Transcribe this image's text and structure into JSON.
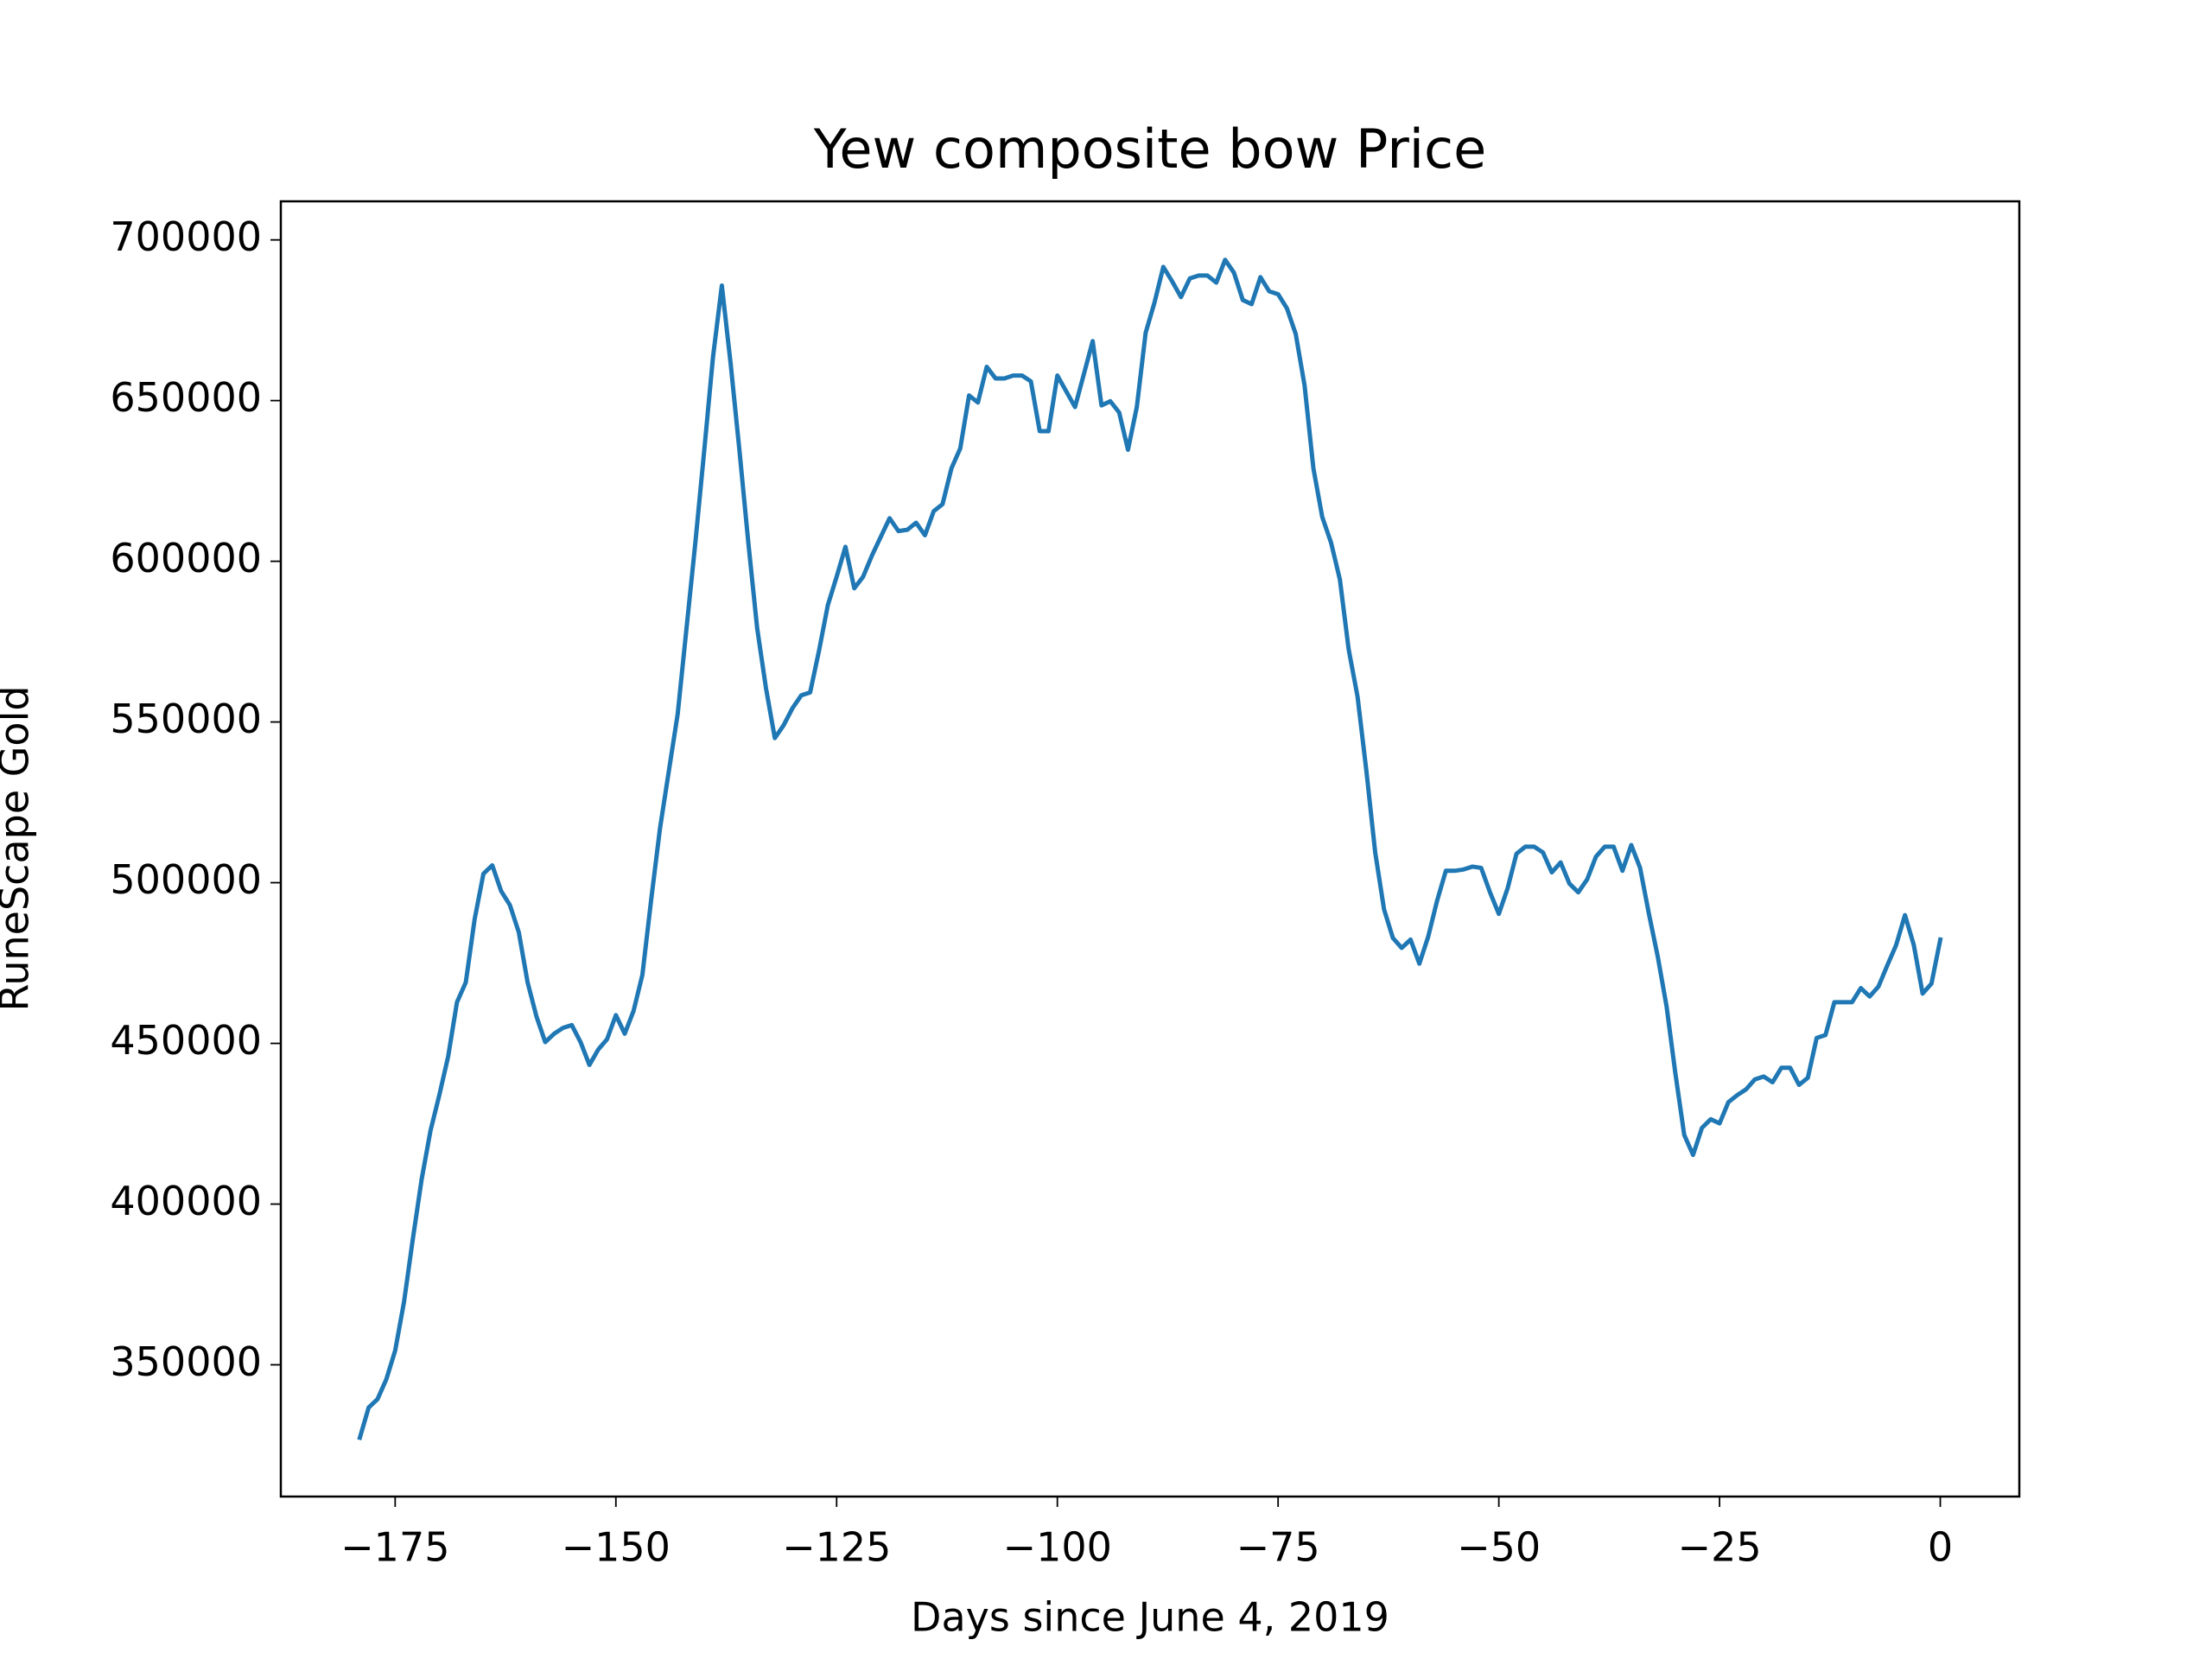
{
  "chart_data": {
    "type": "line",
    "title": "Yew composite bow Price",
    "xlabel": "Days since June 4, 2019",
    "ylabel": "RuneScape Gold",
    "x": [
      -179,
      -178,
      -177,
      -176,
      -175,
      -174,
      -173,
      -172,
      -171,
      -170,
      -169,
      -168,
      -167,
      -166,
      -165,
      -164,
      -163,
      -162,
      -161,
      -160,
      -159,
      -158,
      -157,
      -156,
      -155,
      -154,
      -153,
      -152,
      -151,
      -150,
      -149,
      -148,
      -147,
      -146,
      -145,
      -144,
      -143,
      -142,
      -141,
      -140,
      -139,
      -138,
      -137,
      -136,
      -135,
      -134,
      -133,
      -132,
      -131,
      -130,
      -129,
      -128,
      -127,
      -126,
      -125,
      -124,
      -123,
      -122,
      -121,
      -120,
      -119,
      -118,
      -117,
      -116,
      -115,
      -114,
      -113,
      -112,
      -111,
      -110,
      -109,
      -108,
      -107,
      -106,
      -105,
      -104,
      -103,
      -102,
      -101,
      -100,
      -99,
      -98,
      -97,
      -96,
      -95,
      -94,
      -93,
      -92,
      -91,
      -90,
      -89,
      -88,
      -87,
      -86,
      -85,
      -84,
      -83,
      -82,
      -81,
      -80,
      -79,
      -78,
      -77,
      -76,
      -75,
      -74,
      -73,
      -72,
      -71,
      -70,
      -69,
      -68,
      -67,
      -66,
      -65,
      -64,
      -63,
      -62,
      -61,
      -60,
      -59,
      -58,
      -57,
      -56,
      -55,
      -54,
      -53,
      -52,
      -51,
      -50,
      -49,
      -48,
      -47,
      -46,
      -45,
      -44,
      -43,
      -42,
      -41,
      -40,
      -39,
      -38,
      -37,
      -36,
      -35,
      -34,
      -33,
      -32,
      -31,
      -30,
      -29,
      -28,
      -27,
      -26,
      -25,
      -24,
      -23,
      -22,
      -21,
      -20,
      -19,
      -18,
      -17,
      -16,
      -15,
      -14,
      -13,
      -12,
      -11,
      -10,
      -9,
      -8,
      -7,
      -6,
      -5,
      -4,
      -3,
      -2,
      -1,
      0
    ],
    "series": [
      {
        "name": "Price",
        "color": "#1f77b4",
        "values": [
          327300,
          336700,
          339300,
          345500,
          354400,
          369500,
          389100,
          407700,
          422800,
          433900,
          445900,
          462800,
          469000,
          488600,
          502800,
          505400,
          497400,
          493000,
          484600,
          469000,
          458400,
          450400,
          453000,
          454800,
          455700,
          450400,
          443300,
          448100,
          451300,
          458800,
          453000,
          460100,
          471300,
          494800,
          517000,
          534800,
          552500,
          579200,
          605800,
          634300,
          663600,
          685800,
          661400,
          634300,
          605800,
          579200,
          560500,
          545000,
          549000,
          554300,
          558300,
          559200,
          572100,
          586300,
          595200,
          604500,
          591600,
          595200,
          601800,
          607600,
          613400,
          609400,
          609800,
          612000,
          608100,
          615600,
          617800,
          628900,
          635100,
          651600,
          649400,
          660500,
          656900,
          656900,
          657800,
          657800,
          656000,
          640500,
          640500,
          657800,
          652900,
          648000,
          658200,
          668500,
          648500,
          649800,
          646300,
          634700,
          648000,
          671100,
          680500,
          691600,
          687100,
          682200,
          688000,
          688900,
          688900,
          686700,
          693800,
          689800,
          681300,
          680000,
          688400,
          684000,
          683100,
          678700,
          670700,
          654700,
          628900,
          613800,
          605800,
          594300,
          572500,
          557900,
          534800,
          509400,
          491700,
          482800,
          479700,
          482300,
          474800,
          483200,
          494300,
          503700,
          503700,
          504100,
          505000,
          504600,
          497000,
          490300,
          498300,
          509000,
          511200,
          511200,
          509400,
          503200,
          506300,
          499700,
          497000,
          501000,
          508100,
          511200,
          511200,
          503700,
          511700,
          504600,
          490300,
          477000,
          461500,
          440600,
          421500,
          415300,
          423700,
          426400,
          425100,
          431700,
          433900,
          435700,
          438800,
          439700,
          437900,
          442400,
          442400,
          437100,
          439300,
          451700,
          452600,
          462800,
          462800,
          462800,
          467200,
          464600,
          467700,
          474300,
          480600,
          489900,
          480600,
          465500,
          468600,
          482300
        ]
      }
    ],
    "xlim": [
      -187.95,
      8.95
    ],
    "ylim": [
      309000,
      712000
    ],
    "xticks": [
      {
        "value": -175,
        "label": "−175"
      },
      {
        "value": -150,
        "label": "−150"
      },
      {
        "value": -125,
        "label": "−125"
      },
      {
        "value": -100,
        "label": "−100"
      },
      {
        "value": -75,
        "label": "−75"
      },
      {
        "value": -50,
        "label": "−50"
      },
      {
        "value": -25,
        "label": "−25"
      },
      0
    ],
    "yticks": [
      350000,
      400000,
      450000,
      500000,
      550000,
      600000,
      650000,
      700000
    ],
    "grid": false
  }
}
